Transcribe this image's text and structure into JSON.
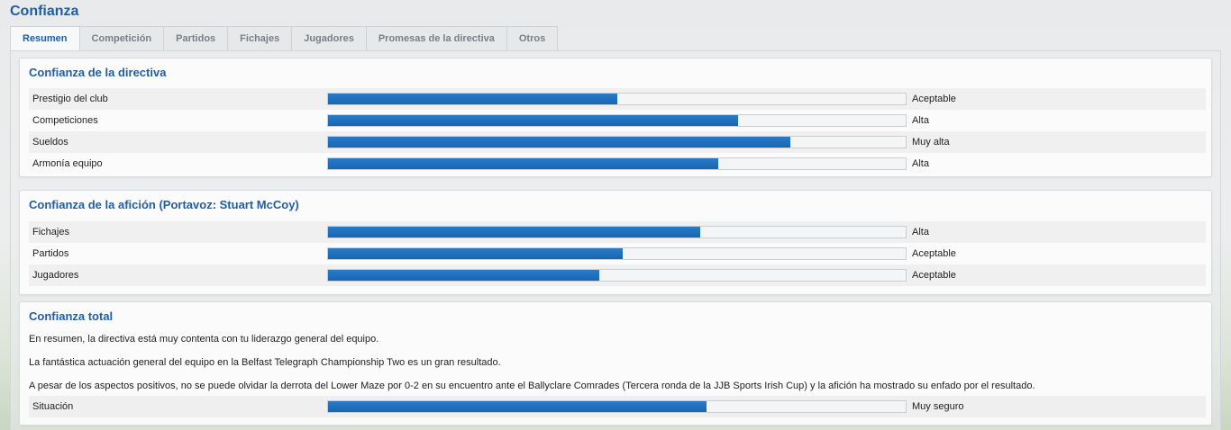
{
  "page": {
    "title": "Confianza"
  },
  "tabs": [
    {
      "label": "Resumen",
      "active": true
    },
    {
      "label": "Competición"
    },
    {
      "label": "Partidos"
    },
    {
      "label": "Fichajes"
    },
    {
      "label": "Jugadores"
    },
    {
      "label": "Promesas de la directiva"
    },
    {
      "label": "Otros"
    }
  ],
  "board": {
    "title": "Confianza de la directiva",
    "rows": [
      {
        "label": "Prestigio del club",
        "value": "Aceptable",
        "level": 0.5
      },
      {
        "label": "Competiciones",
        "value": "Alta",
        "level": 0.71
      },
      {
        "label": "Sueldos",
        "value": "Muy alta",
        "level": 0.8
      },
      {
        "label": "Armonía equipo",
        "value": "Alta",
        "level": 0.675
      }
    ]
  },
  "fans": {
    "title": "Confianza de la afición (Portavoz: Stuart McCoy)",
    "rows": [
      {
        "label": "Fichajes",
        "value": "Alta",
        "level": 0.645
      },
      {
        "label": "Partidos",
        "value": "Aceptable",
        "level": 0.51
      },
      {
        "label": "Jugadores",
        "value": "Aceptable",
        "level": 0.47
      }
    ]
  },
  "overall": {
    "title": "Confianza total",
    "paragraphs": [
      "En resumen, la directiva está muy contenta con tu liderazgo general del equipo.",
      "La fantástica actuación general del equipo en la Belfast Telegraph Championship Two es un gran resultado.",
      "A pesar de los aspectos positivos, no se puede olvidar la derrota del Lower Maze por 0-2 en su encuentro ante el Ballyclare Comrades (Tercera ronda de la JJB Sports Irish Cup) y la afición ha mostrado su enfado por el resultado."
    ],
    "status": {
      "label": "Situación",
      "value": "Muy seguro",
      "level": 0.655
    }
  },
  "colors": {
    "accent": "#1f5fa5",
    "bar": "#1766b3"
  }
}
